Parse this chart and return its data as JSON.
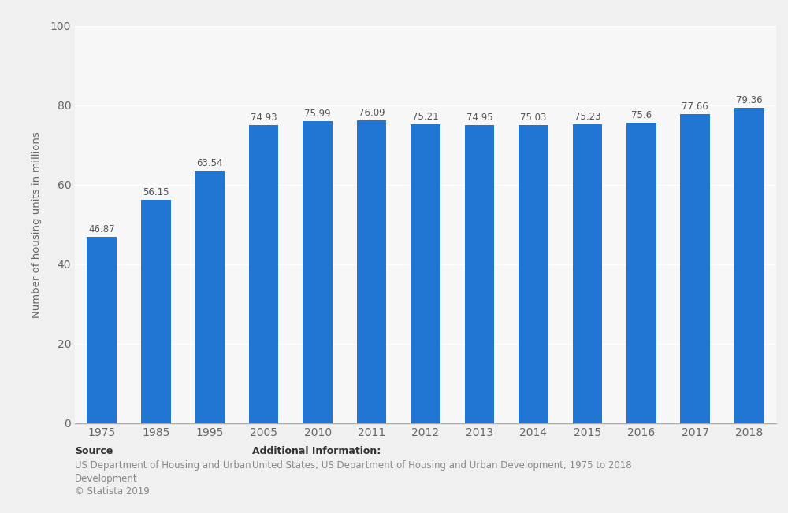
{
  "categories": [
    "1975",
    "1985",
    "1995",
    "2005",
    "2010",
    "2011",
    "2012",
    "2013",
    "2014",
    "2015",
    "2016",
    "2017",
    "2018"
  ],
  "values": [
    46.87,
    56.15,
    63.54,
    74.93,
    75.99,
    76.09,
    75.21,
    74.95,
    75.03,
    75.23,
    75.6,
    77.66,
    79.36
  ],
  "bar_color": "#2176d4",
  "ylabel": "Number of housing units in millions",
  "ylim": [
    0,
    100
  ],
  "yticks": [
    0,
    20,
    40,
    60,
    80,
    100
  ],
  "plot_bg_color": "#ebebeb",
  "col_bg_color": "#f7f7f7",
  "fig_bg_color": "#f0f0f0",
  "grid_color": "#ffffff",
  "label_color": "#666666",
  "source_bold": "Source",
  "source_line1": "US Department of Housing and Urban",
  "source_line2": "Development",
  "source_line3": "© Statista 2019",
  "add_info_bold": "Additional Information:",
  "add_info_line": "United States; US Department of Housing and Urban Development; 1975 to 2018",
  "value_label_color": "#555555",
  "axis_color": "#aaaaaa",
  "bar_width": 0.55
}
